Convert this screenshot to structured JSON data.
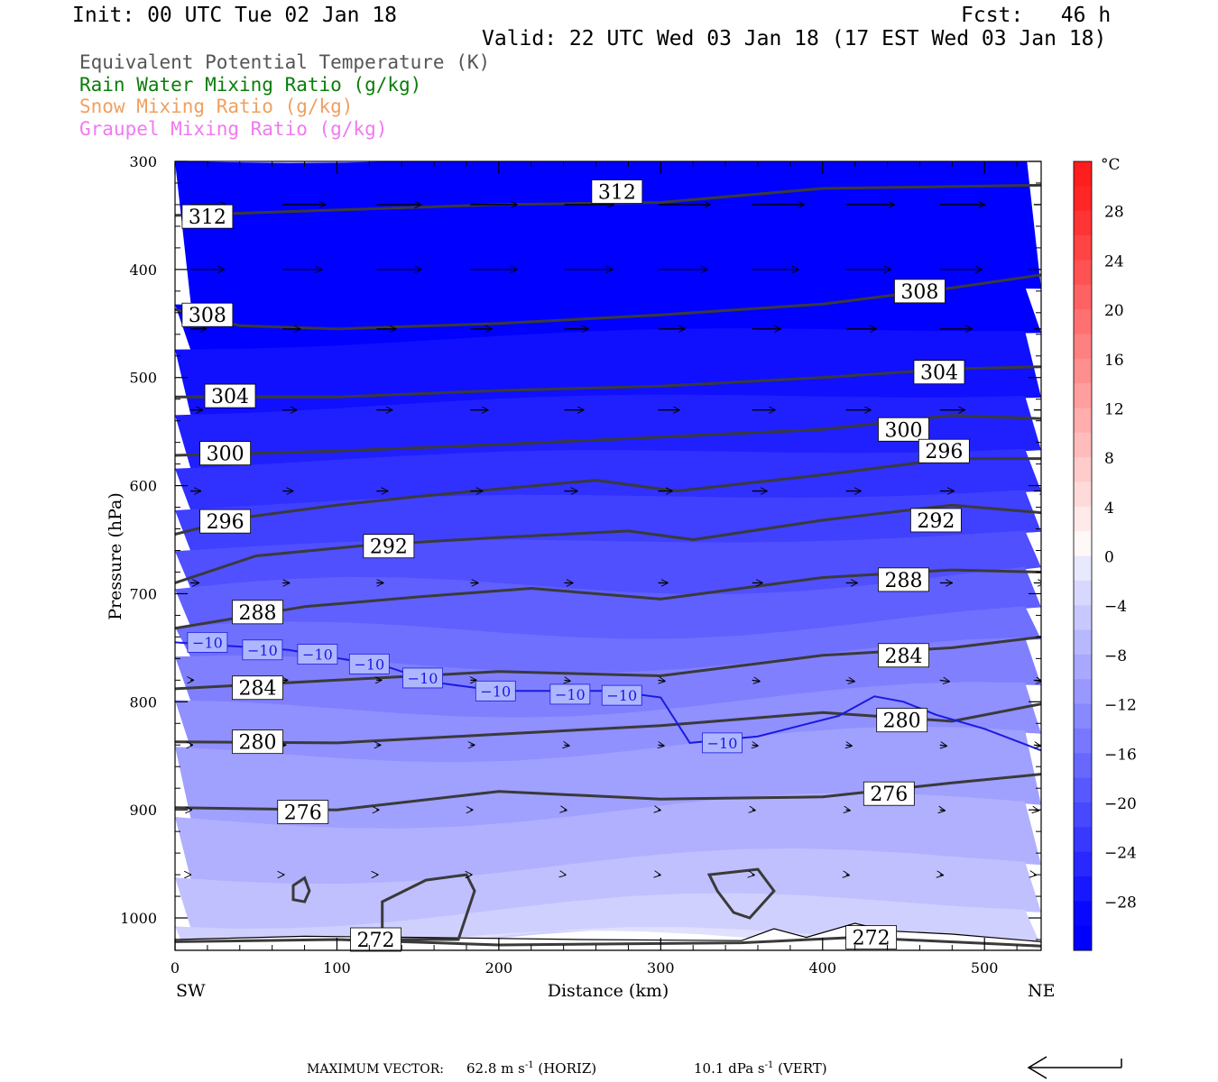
{
  "header": {
    "init": "Init: 00 UTC Tue 02 Jan 18",
    "fcst": "Fcst:   46 h",
    "valid": "Valid: 22 UTC Wed 03 Jan 18 (17 EST Wed 03 Jan 18)"
  },
  "legend": [
    {
      "text": "Equivalent Potential Temperature (K)",
      "color": "#555555"
    },
    {
      "text": "Rain Water Mixing Ratio (g/kg)",
      "color": "#0a7d0a"
    },
    {
      "text": "Snow Mixing Ratio (g/kg)",
      "color": "#f0a060"
    },
    {
      "text": "Graupel Mixing Ratio (g/kg)",
      "color": "#f07af0"
    }
  ],
  "footer": {
    "max_vector_label": "MAXIMUM VECTOR:",
    "horiz_value": "62.8 m s",
    "horiz_unit": " (HORIZ)",
    "vert_value": "10.1 dPa s",
    "vert_unit": " (VERT)",
    "exponent": "-1"
  },
  "chart_data": {
    "type": "cross-section contour",
    "xlabel": "Distance (km)",
    "ylabel": "Pressure (hPa)",
    "x_ticks": [
      0,
      100,
      200,
      300,
      400,
      500
    ],
    "xlim": [
      0,
      535
    ],
    "y_ticks": [
      300,
      400,
      500,
      600,
      700,
      800,
      900,
      1000
    ],
    "ylim": [
      300,
      1030
    ],
    "x_end_labels": {
      "left": "SW",
      "right": "NE"
    },
    "colorbar": {
      "unit": "°C",
      "tick_labels": [
        "28",
        "24",
        "20",
        "16",
        "12",
        "8",
        "4",
        "0",
        "−4",
        "−8",
        "−12",
        "−16",
        "−20",
        "−24",
        "−28"
      ],
      "tick_values": [
        28,
        24,
        20,
        16,
        12,
        8,
        4,
        0,
        -4,
        -8,
        -12,
        -16,
        -20,
        -24,
        -28
      ],
      "range": [
        -32,
        32
      ],
      "step": 2
    },
    "theta_e_contours": [
      {
        "value": 312,
        "label": "312",
        "points": [
          [
            0,
            350
          ],
          [
            100,
            345
          ],
          [
            200,
            340
          ],
          [
            300,
            338
          ],
          [
            400,
            325
          ],
          [
            535,
            322
          ]
        ],
        "label_pos": [
          [
            20,
            351
          ],
          [
            273,
            328
          ]
        ]
      },
      {
        "value": 308,
        "label": "308",
        "points": [
          [
            0,
            437
          ],
          [
            40,
            452
          ],
          [
            100,
            455
          ],
          [
            200,
            450
          ],
          [
            300,
            442
          ],
          [
            400,
            432
          ],
          [
            480,
            417
          ],
          [
            535,
            405
          ]
        ],
        "label_pos": [
          [
            20,
            442
          ],
          [
            460,
            420
          ]
        ]
      },
      {
        "value": 304,
        "label": "304",
        "points": [
          [
            0,
            518
          ],
          [
            100,
            518
          ],
          [
            200,
            512
          ],
          [
            300,
            508
          ],
          [
            400,
            500
          ],
          [
            480,
            492
          ],
          [
            535,
            490
          ]
        ],
        "label_pos": [
          [
            34,
            517
          ],
          [
            472,
            495
          ]
        ]
      },
      {
        "value": 300,
        "label": "300",
        "points": [
          [
            0,
            572
          ],
          [
            100,
            568
          ],
          [
            200,
            562
          ],
          [
            300,
            555
          ],
          [
            400,
            548
          ],
          [
            480,
            535
          ],
          [
            535,
            538
          ]
        ],
        "label_pos": [
          [
            31,
            570
          ],
          [
            450,
            548
          ]
        ]
      },
      {
        "value": 296,
        "label": "296",
        "points": [
          [
            0,
            645
          ],
          [
            40,
            630
          ],
          [
            100,
            618
          ],
          [
            150,
            610
          ],
          [
            200,
            603
          ],
          [
            260,
            595
          ],
          [
            310,
            605
          ],
          [
            400,
            590
          ],
          [
            480,
            575
          ],
          [
            535,
            575
          ]
        ],
        "label_pos": [
          [
            31,
            633
          ],
          [
            475,
            568
          ]
        ]
      },
      {
        "value": 292,
        "label": "292",
        "points": [
          [
            0,
            690
          ],
          [
            50,
            665
          ],
          [
            120,
            655
          ],
          [
            200,
            648
          ],
          [
            280,
            642
          ],
          [
            320,
            650
          ],
          [
            400,
            632
          ],
          [
            480,
            618
          ],
          [
            535,
            625
          ]
        ],
        "label_pos": [
          [
            132,
            656
          ],
          [
            470,
            632
          ]
        ]
      },
      {
        "value": 288,
        "label": "288",
        "points": [
          [
            0,
            732
          ],
          [
            80,
            712
          ],
          [
            150,
            703
          ],
          [
            220,
            695
          ],
          [
            300,
            705
          ],
          [
            400,
            685
          ],
          [
            480,
            678
          ],
          [
            535,
            680
          ]
        ],
        "label_pos": [
          [
            51,
            717
          ],
          [
            450,
            687
          ]
        ]
      },
      {
        "value": 284,
        "label": "284",
        "points": [
          [
            0,
            788
          ],
          [
            100,
            780
          ],
          [
            200,
            772
          ],
          [
            300,
            776
          ],
          [
            400,
            757
          ],
          [
            480,
            750
          ],
          [
            535,
            740
          ]
        ],
        "label_pos": [
          [
            51,
            787
          ],
          [
            450,
            757
          ]
        ]
      },
      {
        "value": 280,
        "label": "280",
        "points": [
          [
            0,
            837
          ],
          [
            100,
            838
          ],
          [
            200,
            830
          ],
          [
            300,
            822
          ],
          [
            400,
            810
          ],
          [
            480,
            818
          ],
          [
            535,
            802
          ]
        ],
        "label_pos": [
          [
            51,
            837
          ],
          [
            449,
            817
          ]
        ]
      },
      {
        "value": 276,
        "label": "276",
        "points": [
          [
            0,
            898
          ],
          [
            100,
            900
          ],
          [
            200,
            883
          ],
          [
            300,
            890
          ],
          [
            400,
            888
          ],
          [
            480,
            875
          ],
          [
            535,
            867
          ]
        ],
        "label_pos": [
          [
            79,
            902
          ],
          [
            441,
            885
          ]
        ]
      },
      {
        "value": 272,
        "label": "272",
        "points": [
          [
            0,
            1022
          ],
          [
            100,
            1020
          ],
          [
            200,
            1025
          ],
          [
            350,
            1023
          ],
          [
            420,
            1018
          ],
          [
            535,
            1026
          ]
        ],
        "label_pos": [
          [
            124,
            1020
          ],
          [
            430,
            1018
          ]
        ]
      }
    ],
    "isotherm_minus10": {
      "value": -10,
      "label": "−10",
      "points": [
        [
          0,
          745
        ],
        [
          70,
          752
        ],
        [
          130,
          767
        ],
        [
          160,
          782
        ],
        [
          200,
          790
        ],
        [
          270,
          790
        ],
        [
          300,
          796
        ],
        [
          318,
          838
        ],
        [
          360,
          832
        ],
        [
          410,
          813
        ],
        [
          432,
          795
        ],
        [
          450,
          800
        ],
        [
          470,
          812
        ],
        [
          500,
          825
        ],
        [
          535,
          845
        ]
      ],
      "label_pos": [
        [
          20,
          745
        ],
        [
          54,
          752
        ],
        [
          88,
          756
        ],
        [
          120,
          765
        ],
        [
          153,
          778
        ],
        [
          198,
          790
        ],
        [
          244,
          793
        ],
        [
          276,
          794
        ],
        [
          338,
          838
        ]
      ]
    },
    "wind_vectors": {
      "levels": [
        340,
        400,
        455,
        530,
        605,
        690,
        780,
        840,
        900,
        960
      ],
      "columns": [
        5,
        62,
        120,
        178,
        236,
        294,
        352,
        410,
        468,
        526
      ],
      "dx": [
        [
          40,
          48,
          50,
          52,
          55,
          58,
          58,
          54,
          50,
          48
        ],
        [
          38,
          44,
          50,
          52,
          54,
          55,
          52,
          50,
          47,
          45
        ],
        [
          18,
          20,
          22,
          24,
          27,
          30,
          32,
          34,
          36,
          34
        ],
        [
          14,
          16,
          18,
          20,
          22,
          24,
          26,
          28,
          28,
          26
        ],
        [
          12,
          12,
          13,
          14,
          15,
          16,
          17,
          17,
          16,
          14
        ],
        [
          10,
          8,
          8,
          9,
          10,
          11,
          12,
          13,
          14,
          12
        ],
        [
          4,
          6,
          6,
          7,
          7,
          8,
          9,
          10,
          11,
          10
        ],
        [
          3,
          4,
          5,
          5,
          6,
          7,
          7,
          7,
          8,
          8
        ],
        [
          2,
          3,
          3,
          3,
          3,
          3,
          4,
          5,
          6,
          6
        ],
        [
          1,
          2,
          2,
          2,
          2,
          3,
          3,
          4,
          4,
          3
        ]
      ]
    },
    "small_theta_e_closed_contours": [
      {
        "points": [
          [
            73,
            970
          ],
          [
            80,
            963
          ],
          [
            83,
            975
          ],
          [
            80,
            985
          ],
          [
            73,
            983
          ]
        ]
      },
      {
        "points": [
          [
            128,
            1020
          ],
          [
            128,
            985
          ],
          [
            155,
            965
          ],
          [
            180,
            960
          ],
          [
            185,
            975
          ],
          [
            175,
            1020
          ]
        ]
      },
      {
        "points": [
          [
            330,
            960
          ],
          [
            360,
            955
          ],
          [
            370,
            975
          ],
          [
            355,
            1000
          ],
          [
            345,
            995
          ],
          [
            335,
            975
          ]
        ]
      }
    ]
  }
}
